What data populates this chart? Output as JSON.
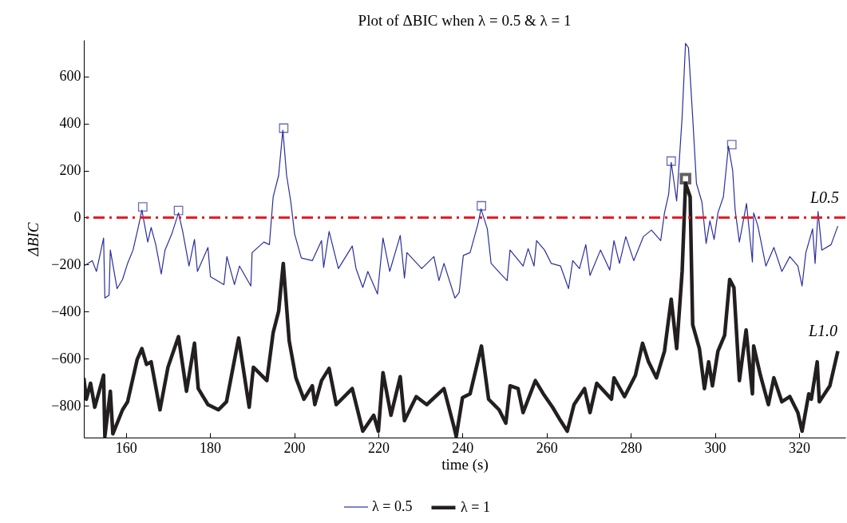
{
  "chart_data": {
    "type": "line",
    "title": "Plot of ΔBIC when λ = 0.5 & λ = 1",
    "xlabel": "time (s)",
    "ylabel": "ΔBIC",
    "xlim": [
      150,
      331
    ],
    "xticks": [
      160,
      180,
      200,
      220,
      240,
      260,
      280,
      300,
      320
    ],
    "ylim": [
      -935,
      755
    ],
    "yticks": [
      -800,
      -600,
      -400,
      -200,
      0,
      200,
      400,
      600
    ],
    "grid": false,
    "legend": "bottom",
    "marker": "none",
    "line_style": "solid",
    "series": [
      {
        "name": "λ = 0.5",
        "color": "#2b2f9b",
        "x": [
          150,
          152,
          153,
          154.7,
          155,
          156,
          156.3,
          157.9,
          159.2,
          160.4,
          161.7,
          163,
          163.8,
          165.2,
          166,
          167.1,
          168.4,
          169.3,
          170.9,
          172.5,
          173.5,
          175,
          176.3,
          177,
          179.5,
          180.1,
          183.3,
          184,
          185.8,
          187,
          189.7,
          190,
          192.8,
          194.1,
          195,
          196.3,
          197.3,
          198.2,
          199.2,
          200.1,
          201.7,
          204.3,
          206.5,
          207,
          208.3,
          210.5,
          213.8,
          214.7,
          216.3,
          217.5,
          219.8,
          221.1,
          222.7,
          225.2,
          226.2,
          226.8,
          230.3,
          233.2,
          234.4,
          235.6,
          238.2,
          239.2,
          240.2,
          241.8,
          243.7,
          244.4,
          245.9,
          246.8,
          249.1,
          250.6,
          251.3,
          254.4,
          255.6,
          257,
          257.6,
          259.5,
          261.1,
          263.3,
          265.2,
          266.2,
          267.8,
          269.3,
          270.3,
          272.8,
          275,
          276,
          277.3,
          278.8,
          280.7,
          283,
          284.9,
          287.1,
          288,
          289,
          289.6,
          290.9,
          292.2,
          293,
          293.7,
          294.7,
          295.6,
          296.9,
          297.9,
          298.8,
          299.8,
          300.7,
          302,
          303.2,
          304.2,
          304.8,
          305.8,
          307.5,
          308.9,
          309.2,
          310.2,
          312.1,
          314,
          315.9,
          317.8,
          319.7,
          320.7,
          321.6,
          323.2,
          323.8,
          324.5,
          325.4,
          327.6,
          329.2
        ],
        "values": [
          -206,
          -183,
          -229,
          -87,
          -342,
          -330,
          -138,
          -302,
          -263,
          -195,
          -138,
          -36,
          32,
          -104,
          -42,
          -115,
          -240,
          -138,
          -70,
          20,
          -59,
          -206,
          -93,
          -229,
          -127,
          -251,
          -285,
          -166,
          -285,
          -206,
          -291,
          -149,
          -104,
          -115,
          88,
          179,
          371,
          179,
          66,
          -70,
          -172,
          -183,
          -98,
          -212,
          -59,
          -217,
          -121,
          -217,
          -297,
          -229,
          -325,
          -87,
          -229,
          -76,
          -257,
          -149,
          -217,
          -166,
          -268,
          -195,
          -342,
          -319,
          -161,
          -149,
          -25,
          37,
          -48,
          -195,
          -240,
          -268,
          -138,
          -206,
          -132,
          -206,
          -98,
          -138,
          -195,
          -206,
          -302,
          -183,
          -217,
          -115,
          -246,
          -138,
          -223,
          -98,
          -195,
          -81,
          -183,
          -81,
          -53,
          -98,
          20,
          100,
          235,
          71,
          428,
          740,
          722,
          428,
          145,
          66,
          -110,
          -14,
          -93,
          20,
          88,
          303,
          201,
          32,
          -104,
          60,
          -189,
          20,
          -36,
          -206,
          -127,
          -229,
          -166,
          -206,
          -291,
          -149,
          -48,
          -195,
          26,
          -138,
          -115,
          -36
        ]
      },
      {
        "name": "λ = 1",
        "color": "#231f20",
        "x": [
          150,
          150.6,
          151.6,
          152.6,
          154.7,
          155,
          156.3,
          156.9,
          159.2,
          160.4,
          162.7,
          163.8,
          164.9,
          166,
          168.1,
          170,
          172.5,
          174.4,
          176.3,
          177.2,
          179.5,
          182,
          183.9,
          186.8,
          189.3,
          190.3,
          193.5,
          195,
          196.3,
          197.4,
          198.8,
          200.4,
          202.3,
          204.3,
          204.9,
          206.5,
          208.3,
          210,
          213.8,
          216.3,
          218.9,
          220,
          221.1,
          223,
          225.2,
          226.2,
          229,
          231.5,
          235.6,
          237.9,
          238.5,
          240,
          241.8,
          244.5,
          246.2,
          248.7,
          250.3,
          251.3,
          253.2,
          254.4,
          257.3,
          259.2,
          261.4,
          263.3,
          264.9,
          266.5,
          269,
          270.3,
          271.9,
          275.4,
          276,
          278.5,
          281.1,
          282.8,
          284.2,
          286.1,
          288,
          289.6,
          290.9,
          292.2,
          293,
          294.1,
          294.7,
          296.3,
          297.5,
          298.5,
          299.4,
          300.7,
          302.3,
          303.5,
          304.5,
          305.8,
          307.4,
          308.9,
          309.2,
          310.8,
          312.7,
          314,
          315.9,
          317.8,
          319.7,
          320.7,
          322.3,
          322.9,
          324.3,
          324.8,
          327.3,
          329.2
        ],
        "values": [
          -681,
          -772,
          -704,
          -806,
          -670,
          -930,
          -738,
          -919,
          -817,
          -783,
          -602,
          -557,
          -624,
          -613,
          -817,
          -636,
          -506,
          -738,
          -534,
          -727,
          -795,
          -817,
          -783,
          -512,
          -806,
          -636,
          -693,
          -489,
          -398,
          -195,
          -523,
          -681,
          -772,
          -715,
          -795,
          -693,
          -641,
          -795,
          -727,
          -908,
          -840,
          -908,
          -659,
          -840,
          -676,
          -863,
          -761,
          -795,
          -727,
          -885,
          -930,
          -765,
          -749,
          -546,
          -772,
          -817,
          -874,
          -715,
          -727,
          -829,
          -693,
          -749,
          -806,
          -863,
          -908,
          -795,
          -727,
          -829,
          -704,
          -772,
          -681,
          -761,
          -670,
          -534,
          -613,
          -681,
          -568,
          -347,
          -557,
          -229,
          145,
          88,
          -455,
          -557,
          -727,
          -613,
          -715,
          -568,
          -500,
          -263,
          -297,
          -693,
          -478,
          -749,
          -546,
          -670,
          -795,
          -681,
          -783,
          -761,
          -829,
          -908,
          -749,
          -772,
          -613,
          -783,
          -715,
          -568
        ]
      },
      {
        "type": "scatter",
        "marker": "square",
        "color": "#2b2f9b",
        "x": [
          164,
          172.5,
          197.5,
          244.5,
          289.6,
          304
        ],
        "values": [
          45,
          30,
          380,
          50,
          240,
          310
        ]
      },
      {
        "type": "scatter",
        "marker": "square",
        "color": "#231f20",
        "x": [
          293
        ],
        "values": [
          165
        ]
      }
    ],
    "ref_lines": [
      {
        "axis": "y",
        "value": 0,
        "label": "L0.5",
        "color": "#e41e26",
        "line_style": "dashed"
      }
    ],
    "annotations": [
      "L1.0"
    ]
  }
}
